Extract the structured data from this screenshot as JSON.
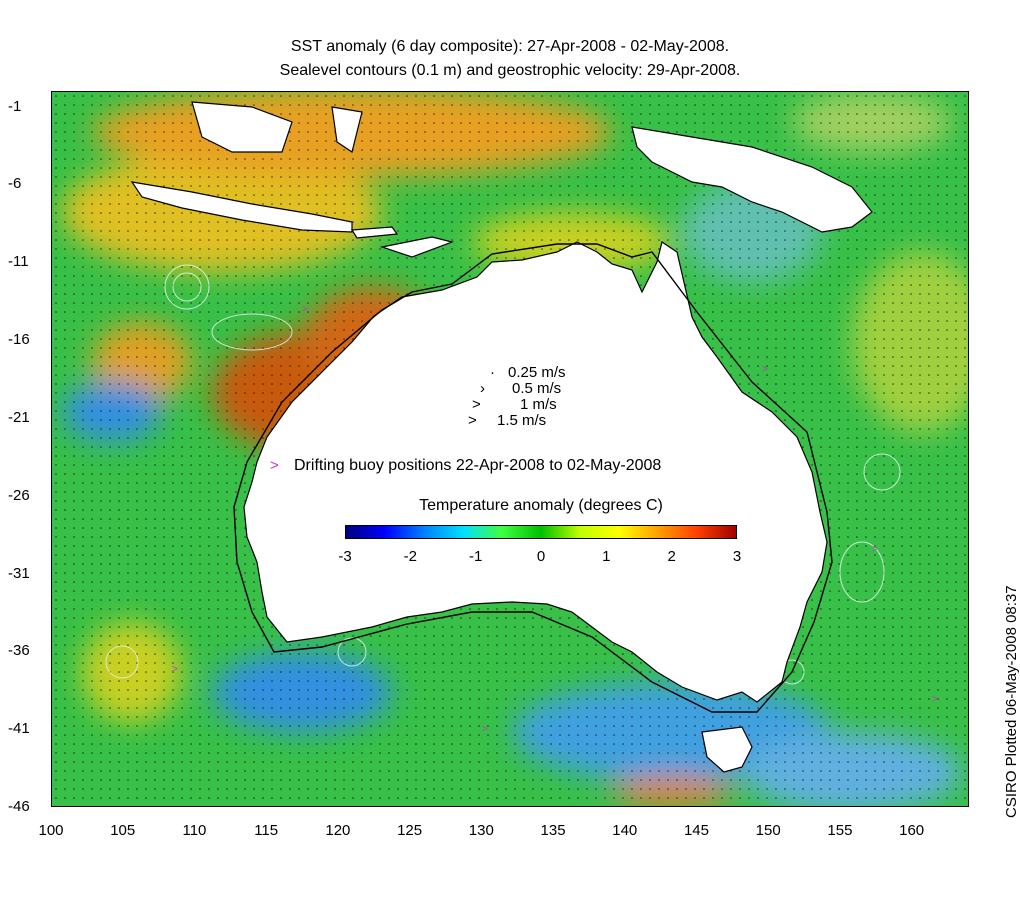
{
  "title": {
    "line1": "SST anomaly (6 day composite): 27-Apr-2008 - 02-May-2008.",
    "line2": "Sealevel contours (0.1 m) and geostrophic velocity: 29-Apr-2008."
  },
  "axes": {
    "x_ticks": [
      "100",
      "105",
      "110",
      "115",
      "120",
      "125",
      "130",
      "135",
      "140",
      "145",
      "150",
      "155",
      "160"
    ],
    "y_ticks": [
      "-1",
      "-6",
      "-11",
      "-16",
      "-21",
      "-26",
      "-31",
      "-36",
      "-41",
      "-46"
    ],
    "xlim": [
      100,
      164
    ],
    "ylim": [
      -46,
      0
    ]
  },
  "velocity_legend": [
    {
      "label": "0.25 m/s",
      "symbol": "·"
    },
    {
      "label": "0.5 m/s",
      "symbol": "›"
    },
    {
      "label": "1 m/s",
      "symbol": ">"
    },
    {
      "label": "1.5 m/s",
      "symbol": ">"
    }
  ],
  "buoy_legend": {
    "symbol": ">",
    "label": "Drifting buoy positions 22-Apr-2008 to 02-May-2008",
    "color": "#cc33cc"
  },
  "colorbar": {
    "title": "Temperature anomaly (degrees C)",
    "ticks": [
      "-3",
      "-2",
      "-1",
      "0",
      "1",
      "2",
      "3"
    ],
    "colors": [
      "#00007f",
      "#0000ff",
      "#0080ff",
      "#00e0ff",
      "#40ff40",
      "#00c000",
      "#c0ff00",
      "#ffff00",
      "#ffa000",
      "#ff4000",
      "#a00000"
    ]
  },
  "credit": "CSIRO Plotted 06-May-2008 08:37",
  "colors": {
    "land": "#ffffff",
    "ocean_base": "#38c048",
    "warm": "#f0a020",
    "hot": "#c85010",
    "cool": "#30a0e0",
    "contour": "#e8f4f0"
  }
}
